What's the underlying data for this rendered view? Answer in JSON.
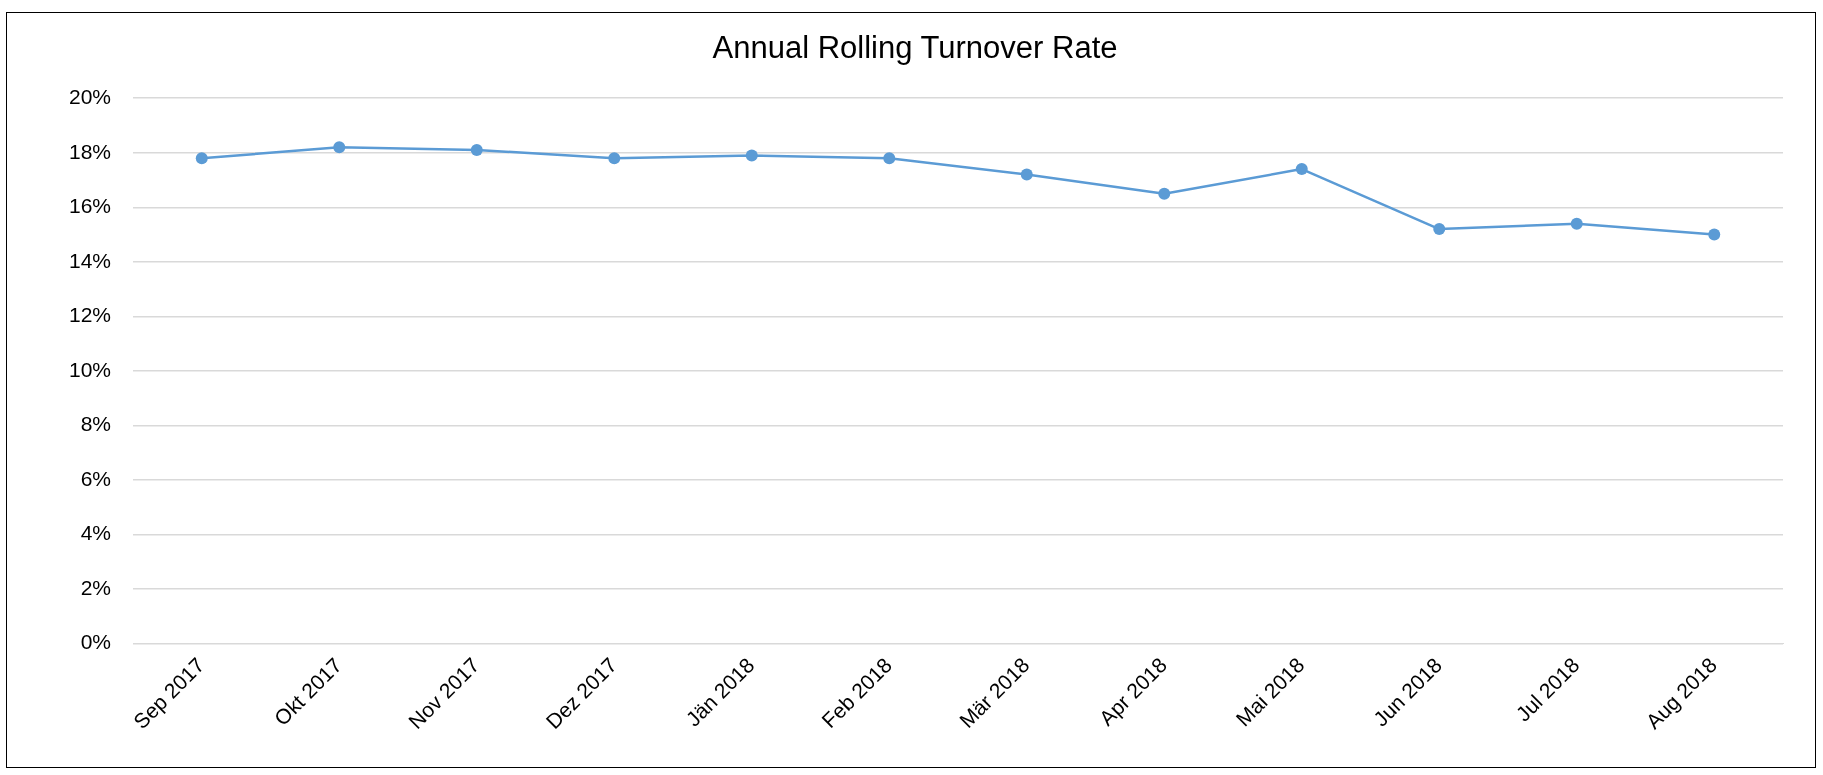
{
  "chart_data": {
    "type": "line",
    "title": "Annual Rolling Turnover Rate",
    "categories": [
      "Sep 2017",
      "Okt 2017",
      "Nov 2017",
      "Dez 2017",
      "Jän 2018",
      "Feb 2018",
      "Mär 2018",
      "Apr 2018",
      "Mai 2018",
      "Jun 2018",
      "Jul 2018",
      "Aug 2018"
    ],
    "series": [
      {
        "color": "#5b9bd5",
        "values": [
          17.8,
          18.2,
          18.1,
          17.8,
          17.9,
          17.8,
          17.2,
          16.5,
          17.4,
          15.2,
          15.4,
          15.0
        ]
      }
    ],
    "ylim": [
      0,
      20
    ],
    "yticks": [
      {
        "value": 0,
        "label": "0%"
      },
      {
        "value": 2,
        "label": "2%"
      },
      {
        "value": 4,
        "label": "4%"
      },
      {
        "value": 6,
        "label": "6%"
      },
      {
        "value": 8,
        "label": "8%"
      },
      {
        "value": 10,
        "label": "10%"
      },
      {
        "value": 12,
        "label": "12%"
      },
      {
        "value": 14,
        "label": "14%"
      },
      {
        "value": 16,
        "label": "16%"
      },
      {
        "value": 18,
        "label": "18%"
      },
      {
        "value": 20,
        "label": "20%"
      }
    ],
    "grid": "y",
    "legend": false,
    "marker": "circle",
    "line_style": "solid"
  }
}
